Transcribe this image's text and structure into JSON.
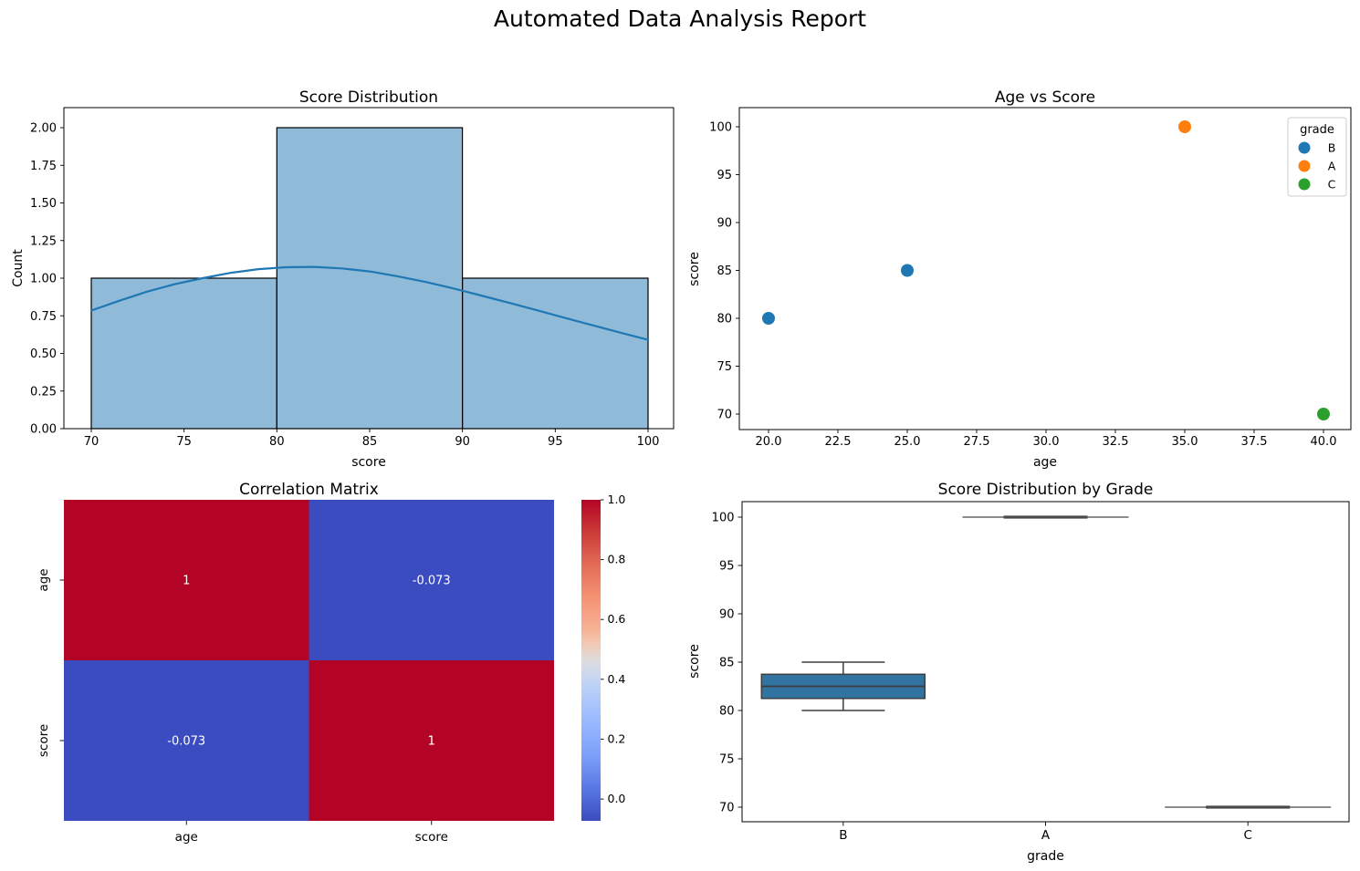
{
  "report": {
    "title": "Automated Data Analysis Report"
  },
  "palette": {
    "background": "#ffffff",
    "text": "#000000"
  },
  "chart_data": [
    {
      "id": "score_distribution",
      "type": "bar",
      "title": "Score Distribution",
      "xlabel": "score",
      "ylabel": "Count",
      "bins": [
        {
          "range": [
            70,
            80
          ],
          "count": 1
        },
        {
          "range": [
            80,
            90
          ],
          "count": 2
        },
        {
          "range": [
            90,
            100
          ],
          "count": 1
        }
      ],
      "xticks": [
        "70",
        "75",
        "80",
        "85",
        "90",
        "95",
        "100"
      ],
      "yticks": [
        "0.00",
        "0.25",
        "0.50",
        "0.75",
        "1.00",
        "1.25",
        "1.50",
        "1.75",
        "2.00"
      ],
      "xlim": [
        68.5,
        101.4
      ],
      "ylim": [
        0,
        2.13
      ],
      "kde": {
        "x": [
          70,
          71.5,
          73,
          74.5,
          76,
          77.5,
          79,
          80.5,
          82,
          83.5,
          85,
          86.5,
          88,
          89.5,
          91,
          92.5,
          94,
          95.5,
          97,
          98.5,
          100
        ],
        "y": [
          0.785,
          0.85,
          0.91,
          0.96,
          1.0,
          1.035,
          1.06,
          1.073,
          1.075,
          1.065,
          1.045,
          1.013,
          0.975,
          0.932,
          0.885,
          0.837,
          0.787,
          0.737,
          0.687,
          0.638,
          0.59
        ]
      },
      "bar_fill": "#8fbbd9",
      "bar_edge": "#000000",
      "kde_color": "#1f77b4",
      "grid": false
    },
    {
      "id": "age_vs_score",
      "type": "scatter",
      "title": "Age vs Score",
      "xlabel": "age",
      "ylabel": "score",
      "series": [
        {
          "name": "B",
          "color": "#1f77b4",
          "points": [
            [
              20,
              80
            ],
            [
              25,
              85
            ]
          ]
        },
        {
          "name": "A",
          "color": "#ff7f0e",
          "points": [
            [
              35,
              100
            ]
          ]
        },
        {
          "name": "C",
          "color": "#2ca02c",
          "points": [
            [
              40,
              70
            ]
          ]
        }
      ],
      "legend_title": "grade",
      "legend_position": "upper right",
      "xticks": [
        "20.0",
        "22.5",
        "25.0",
        "27.5",
        "30.0",
        "32.5",
        "35.0",
        "37.5",
        "40.0"
      ],
      "yticks": [
        "70",
        "75",
        "80",
        "85",
        "90",
        "95",
        "100"
      ],
      "xlim": [
        19.0,
        41.0
      ],
      "ylim": [
        68.5,
        102.0
      ],
      "grid": false
    },
    {
      "id": "correlation_matrix",
      "type": "heatmap",
      "title": "Correlation Matrix",
      "labels": [
        "age",
        "score"
      ],
      "matrix": [
        [
          1,
          -0.073
        ],
        [
          -0.073,
          1
        ]
      ],
      "cell_text": [
        [
          "1",
          "-0.073"
        ],
        [
          "-0.073",
          "1"
        ]
      ],
      "cell_colors": [
        [
          "#b40426",
          "#3b4cc0"
        ],
        [
          "#3b4cc0",
          "#b40426"
        ]
      ],
      "cmap": "coolwarm",
      "vmin": -0.073,
      "vmax": 1.0,
      "colorbar_ticks": [
        "1.0",
        "0.8",
        "0.6",
        "0.4",
        "0.2",
        "0.0"
      ],
      "annotation_color": "#ffffff",
      "grid": false
    },
    {
      "id": "score_by_grade",
      "type": "boxplot",
      "title": "Score Distribution by Grade",
      "xlabel": "grade",
      "ylabel": "score",
      "categories": [
        "B",
        "A",
        "C"
      ],
      "boxes": [
        {
          "grade": "B",
          "min": 80,
          "q1": 81.25,
          "median": 82.5,
          "q3": 83.75,
          "max": 85
        },
        {
          "grade": "A",
          "min": 100,
          "q1": 100,
          "median": 100,
          "q3": 100,
          "max": 100
        },
        {
          "grade": "C",
          "min": 70,
          "q1": 70,
          "median": 70,
          "q3": 70,
          "max": 70
        }
      ],
      "yticks": [
        "70",
        "75",
        "80",
        "85",
        "90",
        "95",
        "100"
      ],
      "ylim": [
        68.5,
        102.0
      ],
      "box_fill": "#3274a1",
      "line_color": "#3d3d3d",
      "grid": false
    }
  ]
}
